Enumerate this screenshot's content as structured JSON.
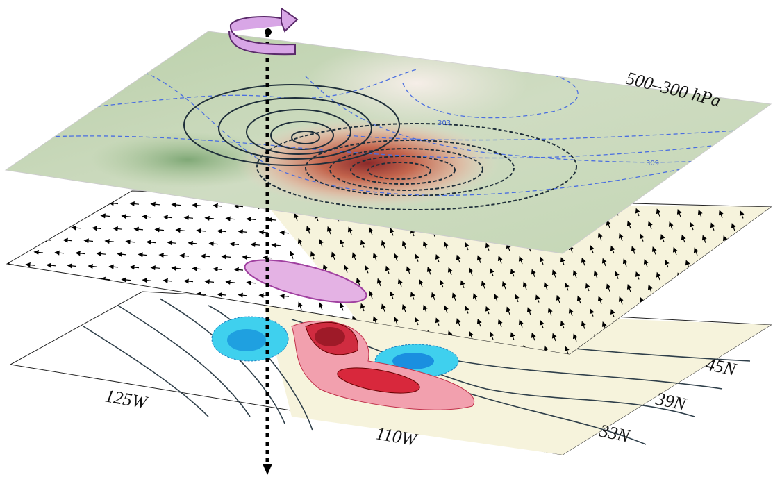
{
  "panels": [
    {
      "label": "500–300 hPa",
      "contour_labels": [
        "303",
        "309"
      ]
    }
  ],
  "axes": {
    "lon_labels": [
      "125W",
      "110W"
    ],
    "lat_labels": [
      "45N",
      "39N",
      "33N"
    ]
  }
}
